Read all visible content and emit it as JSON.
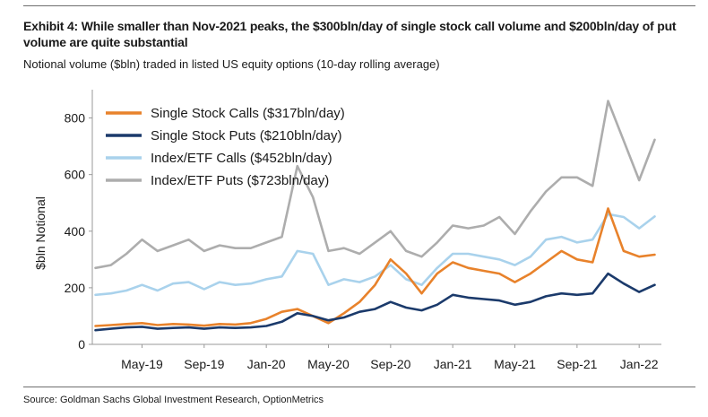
{
  "header": {
    "title": "Exhibit 4: While smaller than Nov-2021 peaks, the $300bln/day of single stock call volume and $200bln/day of put volume are quite substantial",
    "subtitle": "Notional volume ($bln) traded in listed US equity options (10-day rolling average)"
  },
  "footer": {
    "source": "Source: Goldman Sachs Global Investment Research, OptionMetrics"
  },
  "chart_data": {
    "type": "line",
    "title": "Notional volume ($bln) traded in listed US equity options (10-day rolling average)",
    "xlabel": "",
    "ylabel": "$bln Notional",
    "ylim": [
      0,
      900
    ],
    "yticks": [
      0,
      200,
      400,
      600,
      800
    ],
    "xlim": [
      "2019-02",
      "2022-02"
    ],
    "xticks": [
      "May-19",
      "Sep-19",
      "Jan-20",
      "May-20",
      "Sep-20",
      "Jan-21",
      "May-21",
      "Sep-21",
      "Jan-22"
    ],
    "x": [
      "Feb-19",
      "Mar-19",
      "Apr-19",
      "May-19",
      "Jun-19",
      "Jul-19",
      "Aug-19",
      "Sep-19",
      "Oct-19",
      "Nov-19",
      "Dec-19",
      "Jan-20",
      "Feb-20",
      "Mar-20",
      "Apr-20",
      "May-20",
      "Jun-20",
      "Jul-20",
      "Aug-20",
      "Sep-20",
      "Oct-20",
      "Nov-20",
      "Dec-20",
      "Jan-21",
      "Feb-21",
      "Mar-21",
      "Apr-21",
      "May-21",
      "Jun-21",
      "Jul-21",
      "Aug-21",
      "Sep-21",
      "Oct-21",
      "Nov-21",
      "Dec-21",
      "Jan-22",
      "Feb-22"
    ],
    "legend_position": "top-left",
    "grid": false,
    "series": [
      {
        "name": "Single Stock Calls ($317bln/day)",
        "color": "#E8822B",
        "values": [
          65,
          68,
          72,
          75,
          68,
          72,
          70,
          66,
          72,
          70,
          75,
          90,
          115,
          125,
          100,
          75,
          110,
          150,
          210,
          300,
          250,
          180,
          250,
          290,
          270,
          260,
          250,
          220,
          250,
          290,
          330,
          300,
          290,
          480,
          330,
          310,
          317
        ]
      },
      {
        "name": "Single Stock Puts ($210bln/day)",
        "color": "#1B3A6B",
        "values": [
          50,
          55,
          60,
          62,
          55,
          58,
          60,
          55,
          60,
          58,
          60,
          65,
          80,
          110,
          100,
          85,
          95,
          115,
          125,
          150,
          130,
          120,
          140,
          175,
          165,
          160,
          155,
          140,
          150,
          170,
          180,
          175,
          180,
          250,
          215,
          185,
          210
        ]
      },
      {
        "name": "Index/ETF Calls ($452bln/day)",
        "color": "#A9D2EC",
        "values": [
          175,
          180,
          190,
          210,
          190,
          215,
          220,
          195,
          220,
          210,
          215,
          230,
          240,
          330,
          320,
          210,
          230,
          220,
          240,
          280,
          230,
          210,
          270,
          320,
          320,
          310,
          300,
          280,
          310,
          370,
          380,
          360,
          370,
          460,
          450,
          410,
          452
        ]
      },
      {
        "name": "Index/ETF Puts ($723bln/day)",
        "color": "#ADADAD",
        "values": [
          270,
          280,
          320,
          370,
          330,
          350,
          370,
          330,
          350,
          340,
          340,
          360,
          380,
          630,
          520,
          330,
          340,
          320,
          360,
          400,
          330,
          310,
          360,
          420,
          410,
          420,
          450,
          390,
          470,
          540,
          590,
          590,
          560,
          860,
          720,
          580,
          723
        ]
      }
    ]
  }
}
